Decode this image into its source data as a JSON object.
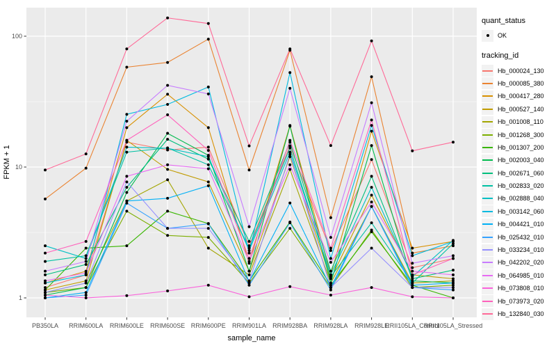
{
  "chart_data": {
    "type": "line",
    "title": "",
    "xlabel": "sample_name",
    "ylabel": "FPKM + 1",
    "y_scale": "log10",
    "y_ticks": [
      1,
      10,
      100
    ],
    "y_minor_ticks": [
      3.162,
      31.62
    ],
    "ylim": [
      0.85,
      160
    ],
    "grid": "white-on-gray-panel",
    "legend_position": "right",
    "categories": [
      "PB350LA",
      "RRIM600LA",
      "RRIM600LE",
      "RRIM600SE",
      "RRIM600PE",
      "RRIM901LA",
      "RRIM928BA",
      "RRIM928LA",
      "RRIM928LE",
      "RRII105LA_Control",
      "RRII105LA_Stressed"
    ],
    "legend": {
      "quant_status_title": "quant_status",
      "quant_status_items": [
        "OK"
      ],
      "tracking_id_title": "tracking_id"
    },
    "series": [
      {
        "name": "Hb_000024_130",
        "color": "#F8766D",
        "values": [
          1.2,
          1.5,
          15.5,
          13.5,
          14.2,
          2.5,
          14.5,
          2.3,
          11.4,
          1.7,
          2.0
        ]
      },
      {
        "name": "Hb_000085_380",
        "color": "#EA8331",
        "values": [
          5.7,
          9.8,
          58,
          63,
          95,
          9.5,
          78,
          4.1,
          49,
          2.2,
          2.5
        ]
      },
      {
        "name": "Hb_000417_280",
        "color": "#D89000",
        "values": [
          1.3,
          1.6,
          20,
          36,
          20,
          1.84,
          20.8,
          1.5,
          18.8,
          2.4,
          2.7
        ]
      },
      {
        "name": "Hb_000527_140",
        "color": "#C09B00",
        "values": [
          1.15,
          1.35,
          16,
          9.6,
          7.7,
          1.6,
          12.0,
          1.4,
          6.1,
          1.5,
          1.4
        ]
      },
      {
        "name": "Hb_001008_110",
        "color": "#A3A500",
        "values": [
          1.1,
          1.3,
          5.5,
          8.0,
          2.4,
          1.5,
          9.6,
          1.3,
          5.0,
          1.3,
          1.35
        ]
      },
      {
        "name": "Hb_001268_300",
        "color": "#7CAE00",
        "values": [
          1.1,
          1.2,
          4.6,
          3.0,
          2.9,
          1.3,
          3.4,
          1.2,
          3.3,
          1.2,
          1.25
        ]
      },
      {
        "name": "Hb_001307_200",
        "color": "#39B600",
        "values": [
          1.15,
          2.4,
          2.5,
          4.6,
          3.7,
          1.35,
          3.8,
          1.25,
          3.2,
          1.25,
          1.0
        ]
      },
      {
        "name": "Hb_002003_040",
        "color": "#00BB4E",
        "values": [
          1.05,
          1.2,
          6.4,
          18.1,
          12.3,
          1.6,
          20.5,
          1.3,
          14.6,
          1.35,
          1.3
        ]
      },
      {
        "name": "Hb_002671_060",
        "color": "#00BF7D",
        "values": [
          1.5,
          1.8,
          7.0,
          16.3,
          11.5,
          2.7,
          15.5,
          1.6,
          8.5,
          1.4,
          1.63
        ]
      },
      {
        "name": "Hb_002833_020",
        "color": "#00C1A3",
        "values": [
          1.9,
          2.1,
          13.0,
          14.0,
          10.4,
          2.4,
          14.0,
          1.45,
          3.75,
          1.3,
          2.6
        ]
      },
      {
        "name": "Hb_002888_040",
        "color": "#00BFC4",
        "values": [
          2.5,
          2.0,
          14.2,
          13.9,
          12.0,
          2.3,
          13.0,
          1.5,
          7.0,
          1.45,
          2.75
        ]
      },
      {
        "name": "Hb_003142_060",
        "color": "#00BAE0",
        "values": [
          1.3,
          1.5,
          25.3,
          30.1,
          40.9,
          2.2,
          52.7,
          2.0,
          20.8,
          2.1,
          2.7
        ]
      },
      {
        "name": "Hb_004421_010",
        "color": "#00B0F6",
        "values": [
          1.0,
          1.1,
          5.5,
          5.77,
          7.2,
          1.33,
          5.31,
          1.2,
          5.0,
          1.25,
          1.3
        ]
      },
      {
        "name": "Hb_025432_010",
        "color": "#35A2FF",
        "values": [
          1.0,
          1.05,
          5.3,
          3.4,
          3.68,
          1.25,
          3.75,
          1.15,
          5.0,
          1.2,
          1.15
        ]
      },
      {
        "name": "Hb_033234_010",
        "color": "#9590FF",
        "values": [
          1.1,
          1.3,
          7.7,
          3.4,
          3.4,
          1.33,
          12.5,
          1.2,
          2.4,
          1.2,
          1.2
        ]
      },
      {
        "name": "Hb_042202_020",
        "color": "#C77CFF",
        "values": [
          1.6,
          1.9,
          22.4,
          42.1,
          36.2,
          3.5,
          40.0,
          2.9,
          31.0,
          1.84,
          2.1
        ]
      },
      {
        "name": "Hb_064985_010",
        "color": "#E76BF3",
        "values": [
          1.35,
          1.55,
          8.5,
          10.4,
          9.7,
          1.9,
          10.4,
          1.87,
          5.4,
          1.6,
          1.5
        ]
      },
      {
        "name": "Hb_073808_010",
        "color": "#FA62DB",
        "values": [
          1.05,
          1.0,
          1.04,
          1.13,
          1.25,
          1.02,
          1.22,
          1.05,
          1.2,
          1.02,
          1.0
        ]
      },
      {
        "name": "Hb_073973_020",
        "color": "#FF62BC",
        "values": [
          2.2,
          2.7,
          16.0,
          25.1,
          13.4,
          2.0,
          16.0,
          2.4,
          22.9,
          1.5,
          2.0
        ]
      },
      {
        "name": "Hb_132840_030",
        "color": "#FF6A98",
        "values": [
          9.5,
          12.6,
          80,
          138,
          125,
          14.5,
          80,
          14.6,
          92,
          13.3,
          15.5
        ]
      }
    ]
  },
  "colors": {
    "panel_bg": "#EBEBEB",
    "grid_major": "#FFFFFF",
    "grid_minor": "#FFFFFF",
    "point": "#000000",
    "tick_label": "#4D4D4D",
    "tick_mark": "#333333",
    "legend_key_bg": "#F2F2F2"
  }
}
